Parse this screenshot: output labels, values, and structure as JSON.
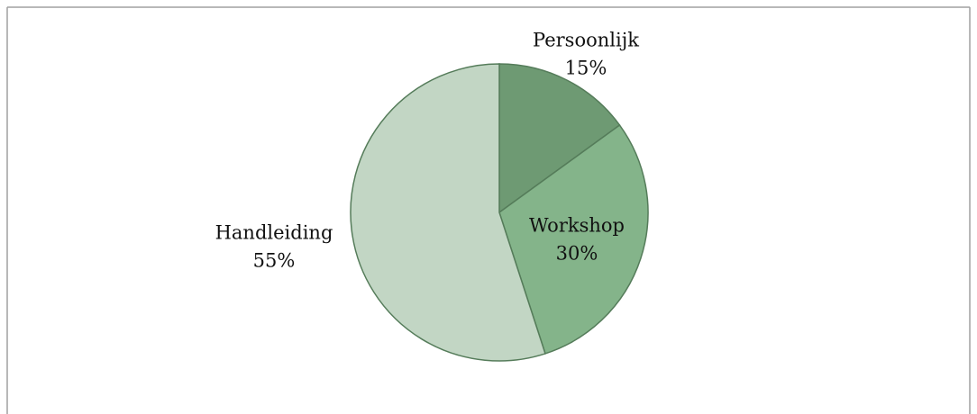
{
  "chart_data": {
    "type": "pie",
    "categories": [
      "Persoonlijk",
      "Workshop",
      "Handleiding"
    ],
    "values": [
      15,
      30,
      55
    ],
    "value_labels": [
      "15%",
      "30%",
      "55%"
    ],
    "colors": [
      "#6e9a73",
      "#84b48a",
      "#c2d6c4"
    ]
  }
}
